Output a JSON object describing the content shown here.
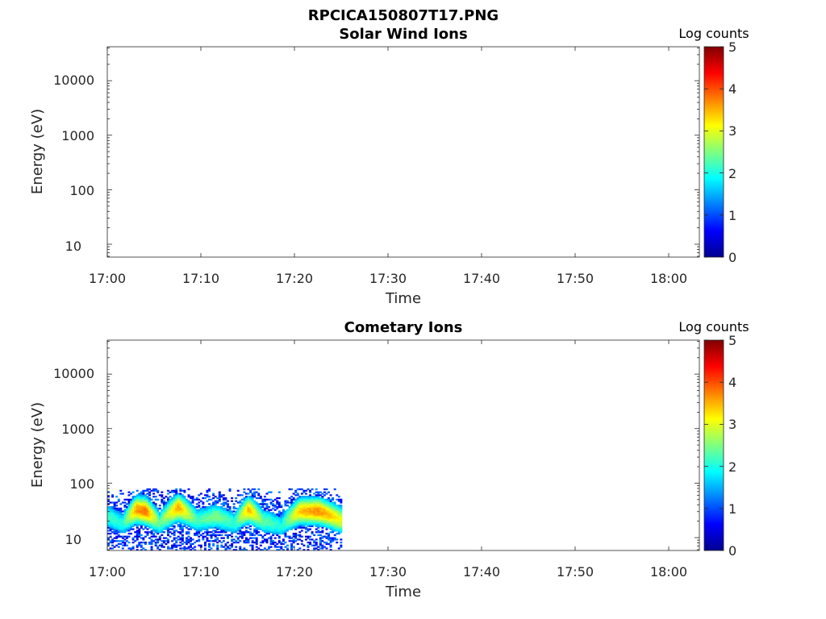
{
  "figure_title": "RPCICA150807T17.PNG",
  "colorbar": {
    "label": "Log counts",
    "min": 0,
    "max": 5,
    "ticks": [
      "0",
      "1",
      "2",
      "3",
      "4",
      "5"
    ],
    "colormap": "jet"
  },
  "chart_data": [
    {
      "type": "heatmap",
      "title": "Solar Wind Ions",
      "xlabel": "Time",
      "ylabel": "Energy (eV)",
      "x_ticks": [
        "17:00",
        "17:10",
        "17:20",
        "17:30",
        "17:40",
        "17:50",
        "18:00"
      ],
      "x_range_minutes": [
        0,
        63.3
      ],
      "y_scale": "log",
      "y_ticks": [
        "10",
        "100",
        "1000",
        "10000"
      ],
      "y_range": [
        5.8,
        42000
      ],
      "data_extent_minutes": [
        0,
        0
      ],
      "spectrogram": []
    },
    {
      "type": "heatmap",
      "title": "Cometary Ions",
      "xlabel": "Time",
      "ylabel": "Energy (eV)",
      "x_ticks": [
        "17:00",
        "17:10",
        "17:20",
        "17:30",
        "17:40",
        "17:50",
        "18:00"
      ],
      "x_range_minutes": [
        0,
        63.3
      ],
      "y_scale": "log",
      "y_ticks": [
        "10",
        "100",
        "1000",
        "10000"
      ],
      "y_range": [
        5.8,
        42000
      ],
      "data_extent_minutes": [
        0,
        25
      ],
      "data_extent_energy_ev": [
        5.8,
        80
      ],
      "spectrogram": [
        {
          "t": 0.0,
          "peak_ev": 24,
          "peak_log": 2.2
        },
        {
          "t": 1.5,
          "peak_ev": 17,
          "peak_log": 2.0
        },
        {
          "t": 3.0,
          "peak_ev": 32,
          "peak_log": 3.6
        },
        {
          "t": 4.0,
          "peak_ev": 30,
          "peak_log": 3.8
        },
        {
          "t": 5.5,
          "peak_ev": 18,
          "peak_log": 2.3
        },
        {
          "t": 7.5,
          "peak_ev": 35,
          "peak_log": 3.6
        },
        {
          "t": 9.5,
          "peak_ev": 20,
          "peak_log": 2.2
        },
        {
          "t": 11.5,
          "peak_ev": 24,
          "peak_log": 2.5
        },
        {
          "t": 13.5,
          "peak_ev": 18,
          "peak_log": 2.1
        },
        {
          "t": 15.0,
          "peak_ev": 32,
          "peak_log": 3.5
        },
        {
          "t": 16.5,
          "peak_ev": 20,
          "peak_log": 2.4
        },
        {
          "t": 18.5,
          "peak_ev": 16,
          "peak_log": 2.0
        },
        {
          "t": 20.5,
          "peak_ev": 30,
          "peak_log": 3.4
        },
        {
          "t": 22.5,
          "peak_ev": 30,
          "peak_log": 3.7
        },
        {
          "t": 25.0,
          "peak_ev": 20,
          "peak_log": 3.0
        }
      ]
    }
  ]
}
